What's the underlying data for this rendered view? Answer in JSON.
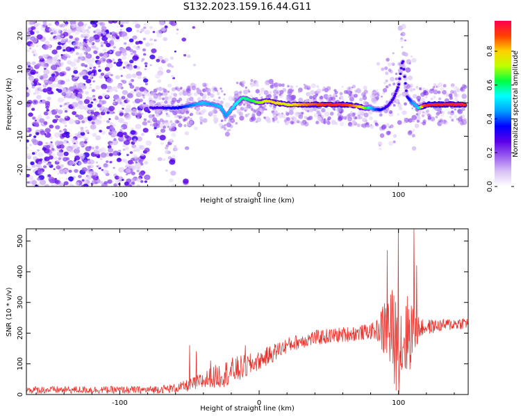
{
  "title": "S132.2023.159.16.44.G11",
  "chart_data": [
    {
      "type": "heatmap",
      "xlabel": "Height of straight line (km)",
      "ylabel": "Frequency (Hz)",
      "xlim": [
        -167,
        150
      ],
      "ylim": [
        -25,
        24.5
      ],
      "x_ticks": [
        -100,
        0,
        100
      ],
      "y_ticks": [
        -20,
        -10,
        0,
        10,
        20
      ],
      "colorbar": {
        "label": "Normalized spectral amplitude",
        "range": [
          0,
          0.98
        ],
        "ticks": [
          0.0,
          0.2,
          0.4,
          0.6,
          0.8
        ],
        "colormap": [
          "#ffffff",
          "#d9c2f5",
          "#9a5df0",
          "#5b00e8",
          "#0000ff",
          "#00a0ff",
          "#00ffff",
          "#00ff40",
          "#c0ff00",
          "#ffd000",
          "#ff4000",
          "#ff0050"
        ]
      },
      "ridge": {
        "x": [
          -76,
          -70,
          -64,
          -58,
          -52,
          -46,
          -40,
          -34,
          -28,
          -24,
          -20,
          -16,
          -12,
          -8,
          -4,
          0,
          4,
          8,
          12,
          20,
          30,
          40,
          50,
          60,
          70,
          76,
          80,
          84,
          88,
          92,
          96,
          100,
          103,
          106,
          110,
          114,
          118,
          122,
          130,
          140,
          148
        ],
        "freq": [
          -1.5,
          -1.5,
          -1.5,
          -1.5,
          -1,
          -0.5,
          0,
          -0.5,
          -1,
          -4,
          -2,
          0,
          1.5,
          1,
          0.5,
          0,
          0.5,
          0.5,
          0,
          -0.5,
          -0.5,
          -0.5,
          -0.5,
          -0.5,
          -1,
          -1.5,
          -1.5,
          -2,
          -2,
          -1,
          1,
          5,
          13,
          2,
          0,
          -1.5,
          -1,
          -0.5,
          -0.5,
          -0.5,
          -0.5
        ],
        "amp": [
          0.3,
          0.3,
          0.35,
          0.35,
          0.4,
          0.45,
          0.5,
          0.45,
          0.5,
          0.45,
          0.5,
          0.55,
          0.6,
          0.6,
          0.65,
          0.7,
          0.75,
          0.8,
          0.8,
          0.75,
          0.85,
          0.9,
          0.95,
          0.95,
          0.85,
          0.7,
          0.5,
          0.4,
          0.35,
          0.3,
          0.3,
          0.3,
          0.3,
          0.3,
          0.45,
          0.5,
          0.9,
          0.95,
          0.95,
          0.95,
          0.95
        ]
      }
    },
    {
      "type": "line",
      "xlabel": "Height of straight line (km)",
      "ylabel": "SNR (10 * v/v)",
      "xlim": [
        -167,
        150
      ],
      "ylim": [
        0,
        540
      ],
      "x_ticks": [
        -100,
        0,
        100
      ],
      "y_ticks": [
        0,
        100,
        200,
        300,
        400,
        500
      ],
      "color": "#e8302a",
      "series_envelope": {
        "x": [
          -167,
          -120,
          -80,
          -60,
          -50,
          -40,
          -30,
          -20,
          -10,
          0,
          10,
          20,
          30,
          40,
          50,
          60,
          70,
          80,
          86,
          90,
          95,
          100,
          105,
          110,
          115,
          120,
          130,
          140,
          150
        ],
        "mean": [
          15,
          15,
          15,
          20,
          30,
          45,
          60,
          75,
          90,
          110,
          135,
          160,
          175,
          185,
          190,
          195,
          200,
          205,
          210,
          215,
          200,
          150,
          190,
          210,
          215,
          220,
          225,
          230,
          235
        ],
        "noise": [
          12,
          12,
          12,
          15,
          20,
          30,
          40,
          45,
          40,
          30,
          30,
          25,
          25,
          25,
          25,
          25,
          25,
          25,
          40,
          110,
          150,
          160,
          140,
          120,
          30,
          25,
          20,
          20,
          20
        ]
      },
      "peaks": [
        {
          "x": -50,
          "y": 160
        },
        {
          "x": -45,
          "y": 140
        },
        {
          "x": -35,
          "y": 110
        },
        {
          "x": -10,
          "y": 160
        },
        {
          "x": 92,
          "y": 470
        },
        {
          "x": 100,
          "y": 540
        },
        {
          "x": 111,
          "y": 540
        },
        {
          "x": 113,
          "y": 420
        }
      ]
    }
  ]
}
